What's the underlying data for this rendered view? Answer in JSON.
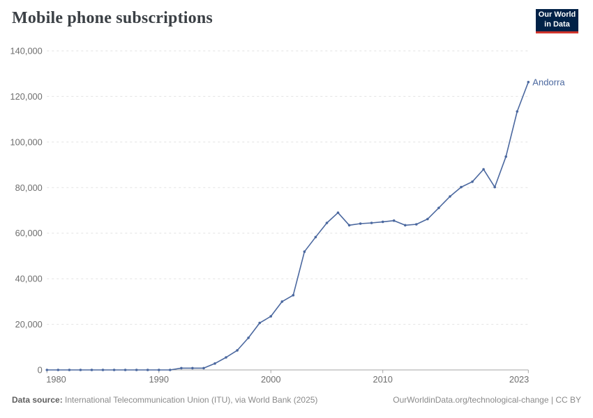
{
  "header": {
    "title": "Mobile phone subscriptions",
    "logo": {
      "line1": "Our World",
      "line2": "in Data",
      "bg_color": "#002147",
      "accent_color": "#d0342c"
    }
  },
  "chart_data": {
    "type": "line",
    "title": "Mobile phone subscriptions",
    "entity_label": "Andorra",
    "x": [
      1980,
      1981,
      1982,
      1983,
      1984,
      1985,
      1986,
      1987,
      1988,
      1989,
      1990,
      1991,
      1992,
      1993,
      1994,
      1995,
      1996,
      1997,
      1998,
      1999,
      2000,
      2001,
      2002,
      2003,
      2004,
      2005,
      2006,
      2007,
      2008,
      2009,
      2010,
      2011,
      2012,
      2013,
      2014,
      2015,
      2016,
      2017,
      2018,
      2019,
      2020,
      2021,
      2022,
      2023
    ],
    "series": [
      {
        "name": "Andorra",
        "values": [
          0,
          0,
          0,
          0,
          0,
          0,
          0,
          0,
          0,
          0,
          0,
          0,
          800,
          800,
          800,
          2800,
          5500,
          8600,
          14100,
          20600,
          23500,
          30000,
          32800,
          51900,
          58300,
          64500,
          69000,
          63500,
          64200,
          64500,
          65000,
          65500,
          63500,
          63900,
          66200,
          71100,
          76100,
          80200,
          82600,
          88000,
          80200,
          93600,
          113400,
          126300
        ]
      }
    ],
    "xlabel": "",
    "ylabel": "",
    "ylim": [
      0,
      140000
    ],
    "yticks": [
      0,
      20000,
      40000,
      60000,
      80000,
      100000,
      120000,
      140000
    ],
    "xticks": [
      1980,
      1990,
      2000,
      2010,
      2023
    ],
    "grid": "horizontal-dashed",
    "legend_position": "end-of-line-label",
    "line_color": "#4b689f",
    "axis_label_color": "#6e6e6e",
    "gridline_color": "#e2e2e2",
    "axis_color": "#a5a5a5"
  },
  "footer": {
    "source_label": "Data source:",
    "source_text": " International Telecommunication Union (ITU), via World Bank (2025)",
    "link_text": "OurWorldinData.org/technological-change | CC BY"
  }
}
